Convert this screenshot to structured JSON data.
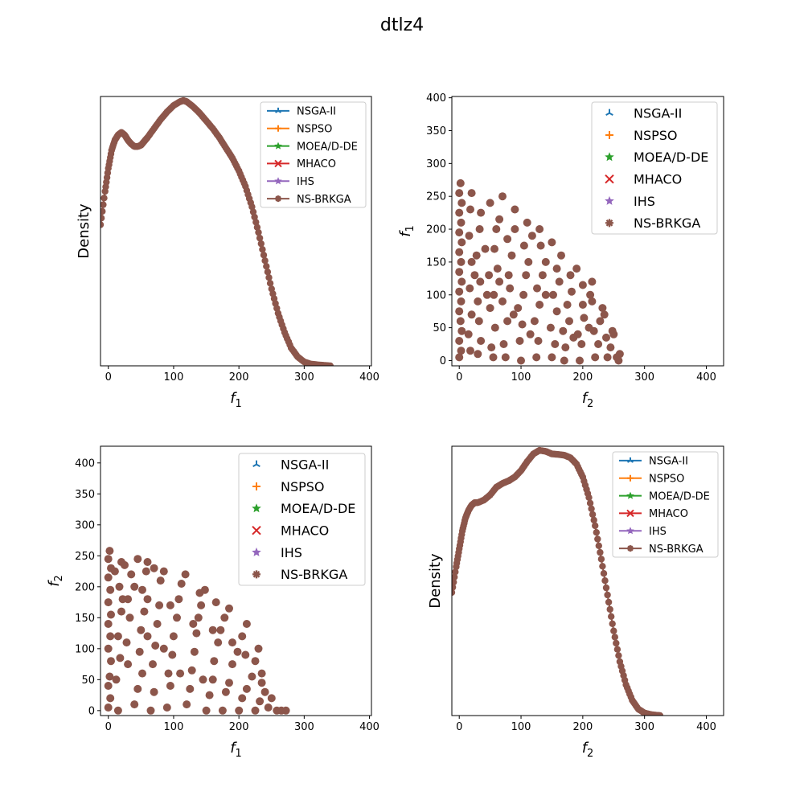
{
  "figure": {
    "title": "dtlz4"
  },
  "colors": {
    "NSGA-II": "#1f77b4",
    "NSPSO": "#ff7f0e",
    "MOEA/D-DE": "#2ca02c",
    "MHACO": "#d62728",
    "IHS": "#9467bd",
    "NS-BRKGA": "#8c564b"
  },
  "chart_data": [
    {
      "type": "line",
      "id": "density-f1",
      "title": "",
      "xlabel": "f1",
      "ylabel": "Density",
      "xlim": [
        -12,
        403
      ],
      "ylim": [
        0,
        1.05
      ],
      "xticks": [
        0,
        100,
        200,
        300,
        400
      ],
      "yticks_visible": false,
      "legend": {
        "placement": "top-right",
        "style": "line"
      },
      "series_names": [
        "NSGA-II",
        "NSPSO",
        "MOEA/D-DE",
        "MHACO",
        "IHS",
        "NS-BRKGA"
      ],
      "curve": {
        "x": [
          -12,
          -5,
          0,
          5,
          10,
          15,
          20,
          25,
          30,
          35,
          40,
          45,
          50,
          55,
          60,
          70,
          80,
          90,
          100,
          110,
          115,
          120,
          130,
          140,
          150,
          160,
          170,
          180,
          190,
          200,
          210,
          220,
          230,
          240,
          250,
          260,
          270,
          280,
          290,
          300,
          310,
          320,
          330,
          340
        ],
        "y": [
          0.55,
          0.68,
          0.77,
          0.84,
          0.88,
          0.9,
          0.91,
          0.9,
          0.88,
          0.865,
          0.855,
          0.855,
          0.86,
          0.875,
          0.89,
          0.925,
          0.96,
          0.99,
          1.015,
          1.03,
          1.034,
          1.03,
          1.01,
          0.985,
          0.955,
          0.925,
          0.89,
          0.85,
          0.81,
          0.76,
          0.7,
          0.62,
          0.52,
          0.41,
          0.3,
          0.205,
          0.13,
          0.07,
          0.035,
          0.015,
          0.007,
          0.004,
          0.002,
          0.0
        ]
      }
    },
    {
      "type": "scatter",
      "id": "f2-vs-f1",
      "title": "",
      "xlabel": "f2",
      "ylabel": "f1",
      "xlim": [
        -12,
        428
      ],
      "ylim": [
        -8,
        402
      ],
      "xticks": [
        0,
        100,
        200,
        300,
        400
      ],
      "yticks": [
        0,
        50,
        100,
        150,
        200,
        250,
        300,
        350,
        400
      ],
      "legend": {
        "placement": "top-right",
        "style": "marker"
      },
      "series_names": [
        "NSGA-II",
        "NSPSO",
        "MOEA/D-DE",
        "MHACO",
        "IHS",
        "NS-BRKGA"
      ],
      "radius": 260,
      "points": [
        [
          0,
          5
        ],
        [
          3,
          15
        ],
        [
          0,
          30
        ],
        [
          4,
          45
        ],
        [
          2,
          60
        ],
        [
          0,
          75
        ],
        [
          3,
          90
        ],
        [
          0,
          105
        ],
        [
          4,
          120
        ],
        [
          0,
          135
        ],
        [
          3,
          150
        ],
        [
          0,
          165
        ],
        [
          4,
          180
        ],
        [
          0,
          195
        ],
        [
          3,
          210
        ],
        [
          0,
          225
        ],
        [
          4,
          240
        ],
        [
          0,
          255
        ],
        [
          2,
          270
        ],
        [
          18,
          15
        ],
        [
          15,
          40
        ],
        [
          20,
          70
        ],
        [
          17,
          110
        ],
        [
          20,
          150
        ],
        [
          16,
          190
        ],
        [
          18,
          230
        ],
        [
          30,
          10
        ],
        [
          35,
          30
        ],
        [
          32,
          60
        ],
        [
          30,
          90
        ],
        [
          34,
          120
        ],
        [
          28,
          160
        ],
        [
          33,
          200
        ],
        [
          35,
          225
        ],
        [
          55,
          5
        ],
        [
          52,
          20
        ],
        [
          58,
          50
        ],
        [
          50,
          80
        ],
        [
          56,
          100
        ],
        [
          62,
          140
        ],
        [
          57,
          170
        ],
        [
          60,
          200
        ],
        [
          65,
          215
        ],
        [
          75,
          5
        ],
        [
          72,
          25
        ],
        [
          78,
          60
        ],
        [
          70,
          90
        ],
        [
          82,
          110
        ],
        [
          80,
          130
        ],
        [
          85,
          160
        ],
        [
          78,
          185
        ],
        [
          90,
          200
        ],
        [
          100,
          0
        ],
        [
          98,
          30
        ],
        [
          102,
          55
        ],
        [
          95,
          80
        ],
        [
          104,
          100
        ],
        [
          108,
          130
        ],
        [
          112,
          150
        ],
        [
          105,
          175
        ],
        [
          118,
          190
        ],
        [
          125,
          5
        ],
        [
          128,
          30
        ],
        [
          122,
          60
        ],
        [
          130,
          85
        ],
        [
          126,
          110
        ],
        [
          135,
          130
        ],
        [
          140,
          150
        ],
        [
          132,
          175
        ],
        [
          150,
          5
        ],
        [
          155,
          25
        ],
        [
          148,
          50
        ],
        [
          158,
          75
        ],
        [
          152,
          100
        ],
        [
          162,
          120
        ],
        [
          158,
          140
        ],
        [
          170,
          0
        ],
        [
          172,
          20
        ],
        [
          168,
          45
        ],
        [
          178,
          60
        ],
        [
          175,
          85
        ],
        [
          182,
          105
        ],
        [
          180,
          130
        ],
        [
          195,
          0
        ],
        [
          198,
          25
        ],
        [
          192,
          40
        ],
        [
          202,
          65
        ],
        [
          200,
          85
        ],
        [
          212,
          100
        ],
        [
          215,
          120
        ],
        [
          220,
          5
        ],
        [
          225,
          25
        ],
        [
          218,
          45
        ],
        [
          228,
          60
        ],
        [
          232,
          80
        ],
        [
          240,
          5
        ],
        [
          245,
          20
        ],
        [
          238,
          35
        ],
        [
          248,
          45
        ],
        [
          255,
          5
        ],
        [
          258,
          0
        ],
        [
          260,
          10
        ],
        [
          42,
          170
        ],
        [
          48,
          130
        ],
        [
          88,
          70
        ],
        [
          115,
          40
        ],
        [
          140,
          100
        ],
        [
          185,
          35
        ],
        [
          210,
          50
        ],
        [
          65,
          120
        ],
        [
          45,
          100
        ],
        [
          25,
          130
        ],
        [
          110,
          210
        ],
        [
          90,
          230
        ],
        [
          70,
          250
        ],
        [
          50,
          240
        ],
        [
          20,
          255
        ],
        [
          130,
          200
        ],
        [
          150,
          180
        ],
        [
          165,
          160
        ],
        [
          190,
          140
        ],
        [
          200,
          115
        ],
        [
          215,
          90
        ],
        [
          235,
          70
        ],
        [
          250,
          40
        ]
      ]
    },
    {
      "type": "scatter",
      "id": "f1-vs-f2",
      "title": "",
      "xlabel": "f1",
      "ylabel": "f2",
      "xlim": [
        -12,
        403
      ],
      "ylim": [
        -8,
        427
      ],
      "xticks": [
        0,
        100,
        200,
        300,
        400
      ],
      "yticks": [
        0,
        50,
        100,
        150,
        200,
        250,
        300,
        350,
        400
      ],
      "legend": {
        "placement": "top-right",
        "style": "marker"
      },
      "series_names": [
        "NSGA-II",
        "NSPSO",
        "MOEA/D-DE",
        "MHACO",
        "IHS",
        "NS-BRKGA"
      ],
      "radius": 265,
      "points": [
        [
          0,
          5
        ],
        [
          3,
          20
        ],
        [
          0,
          40
        ],
        [
          2,
          55
        ],
        [
          4,
          80
        ],
        [
          0,
          100
        ],
        [
          3,
          120
        ],
        [
          0,
          140
        ],
        [
          4,
          155
        ],
        [
          0,
          175
        ],
        [
          3,
          195
        ],
        [
          0,
          215
        ],
        [
          4,
          230
        ],
        [
          0,
          245
        ],
        [
          2,
          258
        ],
        [
          15,
          0
        ],
        [
          12,
          50
        ],
        [
          18,
          85
        ],
        [
          15,
          120
        ],
        [
          20,
          160
        ],
        [
          17,
          200
        ],
        [
          20,
          240
        ],
        [
          30,
          75
        ],
        [
          28,
          110
        ],
        [
          33,
          150
        ],
        [
          30,
          180
        ],
        [
          35,
          220
        ],
        [
          25,
          235
        ],
        [
          40,
          10
        ],
        [
          45,
          35
        ],
        [
          52,
          60
        ],
        [
          48,
          95
        ],
        [
          50,
          130
        ],
        [
          55,
          160
        ],
        [
          52,
          195
        ],
        [
          58,
          225
        ],
        [
          60,
          240
        ],
        [
          65,
          0
        ],
        [
          70,
          30
        ],
        [
          68,
          75
        ],
        [
          72,
          105
        ],
        [
          75,
          140
        ],
        [
          78,
          170
        ],
        [
          80,
          210
        ],
        [
          85,
          225
        ],
        [
          90,
          5
        ],
        [
          95,
          40
        ],
        [
          92,
          60
        ],
        [
          98,
          90
        ],
        [
          100,
          120
        ],
        [
          105,
          150
        ],
        [
          108,
          180
        ],
        [
          112,
          205
        ],
        [
          118,
          220
        ],
        [
          120,
          10
        ],
        [
          125,
          35
        ],
        [
          128,
          65
        ],
        [
          132,
          95
        ],
        [
          135,
          125
        ],
        [
          138,
          150
        ],
        [
          142,
          170
        ],
        [
          148,
          195
        ],
        [
          150,
          0
        ],
        [
          155,
          25
        ],
        [
          160,
          50
        ],
        [
          162,
          80
        ],
        [
          168,
          110
        ],
        [
          172,
          130
        ],
        [
          178,
          150
        ],
        [
          185,
          165
        ],
        [
          175,
          0
        ],
        [
          180,
          30
        ],
        [
          185,
          45
        ],
        [
          190,
          75
        ],
        [
          198,
          95
        ],
        [
          205,
          120
        ],
        [
          212,
          140
        ],
        [
          200,
          0
        ],
        [
          205,
          20
        ],
        [
          212,
          35
        ],
        [
          220,
          55
        ],
        [
          225,
          80
        ],
        [
          230,
          100
        ],
        [
          225,
          0
        ],
        [
          232,
          15
        ],
        [
          240,
          30
        ],
        [
          235,
          45
        ],
        [
          245,
          5
        ],
        [
          250,
          20
        ],
        [
          258,
          0
        ],
        [
          265,
          0
        ],
        [
          272,
          0
        ],
        [
          40,
          200
        ],
        [
          60,
          180
        ],
        [
          95,
          170
        ],
        [
          130,
          140
        ],
        [
          160,
          130
        ],
        [
          190,
          110
        ],
        [
          210,
          90
        ],
        [
          235,
          60
        ],
        [
          22,
          180
        ],
        [
          10,
          225
        ],
        [
          45,
          245
        ],
        [
          70,
          230
        ],
        [
          140,
          190
        ],
        [
          165,
          175
        ],
        [
          110,
          60
        ],
        [
          145,
          50
        ],
        [
          85,
          100
        ],
        [
          60,
          120
        ]
      ]
    },
    {
      "type": "line",
      "id": "density-f2",
      "title": "",
      "xlabel": "f2",
      "ylabel": "Density",
      "xlim": [
        -12,
        428
      ],
      "ylim": [
        0,
        1.05
      ],
      "xticks": [
        0,
        100,
        200,
        300,
        400
      ],
      "yticks_visible": false,
      "legend": {
        "placement": "top-right",
        "style": "line"
      },
      "series_names": [
        "NSGA-II",
        "NSPSO",
        "MOEA/D-DE",
        "MHACO",
        "IHS",
        "NS-BRKGA"
      ],
      "curve": {
        "x": [
          -12,
          -5,
          0,
          5,
          10,
          15,
          20,
          25,
          30,
          40,
          50,
          60,
          70,
          80,
          90,
          100,
          110,
          120,
          130,
          140,
          150,
          160,
          170,
          180,
          190,
          200,
          210,
          220,
          230,
          240,
          250,
          260,
          270,
          280,
          290,
          300,
          310,
          320,
          325
        ],
        "y": [
          0.48,
          0.58,
          0.65,
          0.72,
          0.77,
          0.8,
          0.82,
          0.83,
          0.83,
          0.84,
          0.86,
          0.89,
          0.905,
          0.915,
          0.93,
          0.955,
          0.99,
          1.02,
          1.034,
          1.03,
          1.02,
          1.018,
          1.015,
          1.005,
          0.98,
          0.93,
          0.85,
          0.74,
          0.61,
          0.47,
          0.33,
          0.21,
          0.12,
          0.06,
          0.025,
          0.01,
          0.004,
          0.001,
          0.0
        ]
      }
    }
  ]
}
